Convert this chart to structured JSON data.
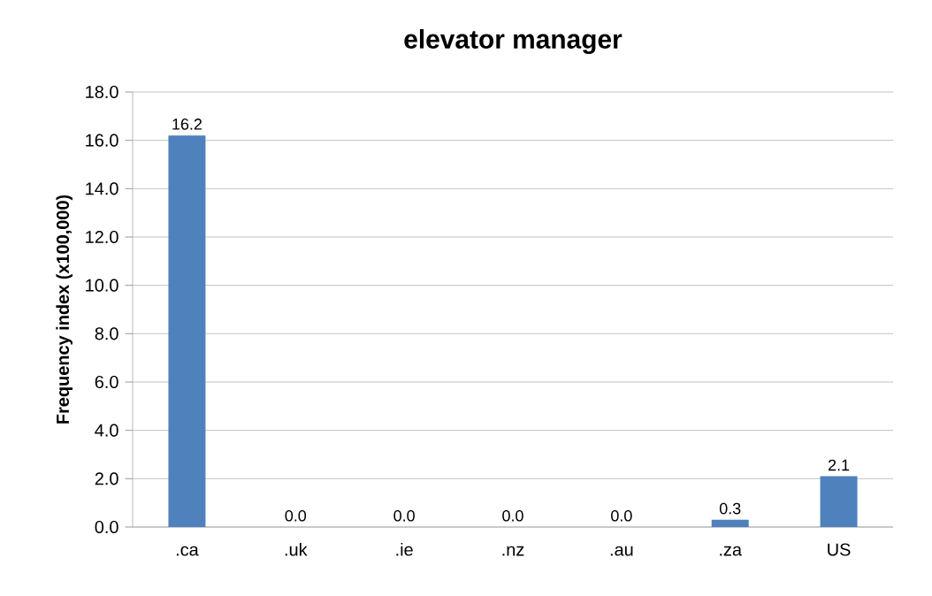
{
  "chart_data": {
    "type": "bar",
    "title": "elevator manager",
    "ylabel": "Frequency index (x100,000)",
    "categories": [
      ".ca",
      ".uk",
      ".ie",
      ".nz",
      ".au",
      ".za",
      "US"
    ],
    "values": [
      16.2,
      0.0,
      0.0,
      0.0,
      0.0,
      0.3,
      2.1
    ],
    "value_labels": [
      "16.2",
      "0.0",
      "0.0",
      "0.0",
      "0.0",
      "0.3",
      "2.1"
    ],
    "color": "#4f81bd",
    "ylim": [
      0,
      18
    ],
    "yticks": [
      {
        "value": 0,
        "label": "0.0"
      },
      {
        "value": 2,
        "label": "2.0"
      },
      {
        "value": 4,
        "label": "4.0"
      },
      {
        "value": 6,
        "label": "6.0"
      },
      {
        "value": 8,
        "label": "8.0"
      },
      {
        "value": 10,
        "label": "10.0"
      },
      {
        "value": 12,
        "label": "12.0"
      },
      {
        "value": 14,
        "label": "14.0"
      },
      {
        "value": 16,
        "label": "16.0"
      },
      {
        "value": 18,
        "label": "18.0"
      }
    ],
    "grid": true
  }
}
